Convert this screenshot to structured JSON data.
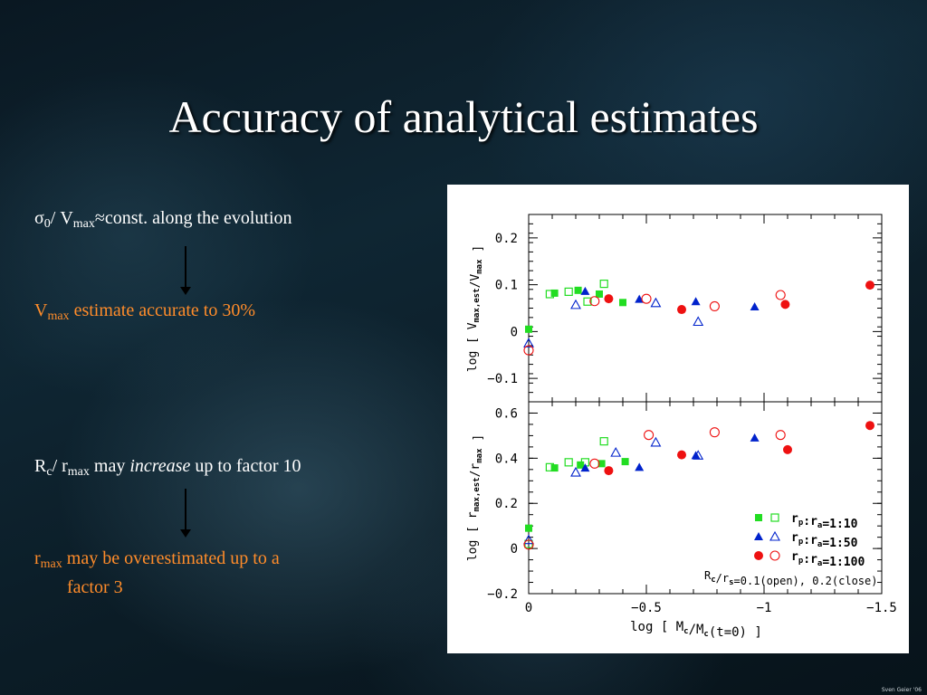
{
  "slide": {
    "title": "Accuracy of analytical estimates",
    "line1_main": "σ",
    "line1_sub1": "0",
    "line1_slash": "/ V",
    "line1_sub2": "max",
    "line1_rest": "≈const.  along the evolution",
    "line2_main": "V",
    "line2_sub": "max",
    "line2_rest": " estimate accurate to 30%",
    "line3_main": "R",
    "line3_sub1": "c",
    "line3_slash": "/ r",
    "line3_sub2": "max",
    "line3_may": " may ",
    "line3_italic": "increase",
    "line3_rest": " up to factor 10",
    "line4_main": "r",
    "line4_sub": "max",
    "line4_rest": " may be overestimated up to a",
    "line4_cont": "factor 3",
    "credit": "Sven Geier '06"
  },
  "chart_data": [
    {
      "type": "scatter",
      "panel": "top",
      "ylabel": "log [ V_max,est/V_max ]",
      "xlim": [
        0,
        -1.5
      ],
      "ylim": [
        -0.15,
        0.25
      ],
      "yticks": [
        0.2,
        0.1,
        0,
        -0.1
      ],
      "ytick_labels": [
        "0.2",
        "0.1",
        "0",
        "−0.1"
      ],
      "series": [
        {
          "marker": "square-filled",
          "color": "#22dd22",
          "points": [
            [
              0,
              0.005
            ],
            [
              -0.11,
              0.082
            ],
            [
              -0.21,
              0.088
            ],
            [
              -0.3,
              0.08
            ],
            [
              -0.4,
              0.062
            ]
          ]
        },
        {
          "marker": "square-open",
          "color": "#22dd22",
          "points": [
            [
              -0.09,
              0.08
            ],
            [
              -0.17,
              0.085
            ],
            [
              -0.25,
              0.064
            ],
            [
              -0.32,
              0.102
            ]
          ]
        },
        {
          "marker": "triangle-filled",
          "color": "#0022cc",
          "points": [
            [
              -0.24,
              0.086
            ],
            [
              -0.47,
              0.069
            ],
            [
              -0.71,
              0.064
            ],
            [
              -0.96,
              0.053
            ]
          ]
        },
        {
          "marker": "triangle-open",
          "color": "#0022cc",
          "points": [
            [
              0,
              -0.025
            ],
            [
              -0.2,
              0.057
            ],
            [
              -0.54,
              0.061
            ],
            [
              -0.72,
              0.021
            ]
          ]
        },
        {
          "marker": "circle-filled",
          "color": "#ee1111",
          "points": [
            [
              -0.34,
              0.07
            ],
            [
              -0.65,
              0.047
            ],
            [
              -1.09,
              0.058
            ],
            [
              -1.45,
              0.099
            ]
          ]
        },
        {
          "marker": "circle-open",
          "color": "#ee1111",
          "points": [
            [
              0,
              -0.04
            ],
            [
              -0.28,
              0.065
            ],
            [
              -0.5,
              0.07
            ],
            [
              -0.79,
              0.054
            ],
            [
              -1.07,
              0.078
            ]
          ]
        }
      ]
    },
    {
      "type": "scatter",
      "panel": "bottom",
      "xlabel": "log [ M_c/M_c(t=0) ]",
      "ylabel": "log [ r_max,est/r_max ]",
      "xlim": [
        0,
        -1.5
      ],
      "ylim": [
        -0.2,
        0.65
      ],
      "xticks": [
        0,
        -0.5,
        -1,
        -1.5
      ],
      "xtick_labels": [
        "0",
        "−0.5",
        "−1",
        "−1.5"
      ],
      "yticks": [
        0.6,
        0.4,
        0.2,
        0,
        -0.2
      ],
      "ytick_labels": [
        "0.6",
        "0.4",
        "0.2",
        "0",
        "−0.2"
      ],
      "series": [
        {
          "marker": "square-filled",
          "color": "#22dd22",
          "points": [
            [
              0,
              0.09
            ],
            [
              -0.11,
              0.357
            ],
            [
              -0.22,
              0.37
            ],
            [
              -0.31,
              0.376
            ],
            [
              -0.41,
              0.385
            ]
          ]
        },
        {
          "marker": "square-open",
          "color": "#22dd22",
          "points": [
            [
              0,
              0.02
            ],
            [
              -0.09,
              0.36
            ],
            [
              -0.17,
              0.382
            ],
            [
              -0.24,
              0.382
            ],
            [
              -0.32,
              0.475
            ]
          ]
        },
        {
          "marker": "triangle-filled",
          "color": "#0022cc",
          "points": [
            [
              -0.24,
              0.357
            ],
            [
              -0.47,
              0.36
            ],
            [
              -0.71,
              0.412
            ],
            [
              -0.96,
              0.49
            ]
          ]
        },
        {
          "marker": "triangle-open",
          "color": "#0022cc",
          "points": [
            [
              0,
              0.038
            ],
            [
              -0.2,
              0.337
            ],
            [
              -0.37,
              0.425
            ],
            [
              -0.54,
              0.47
            ],
            [
              -0.72,
              0.412
            ]
          ]
        },
        {
          "marker": "circle-filled",
          "color": "#ee1111",
          "points": [
            [
              -0.34,
              0.345
            ],
            [
              -0.65,
              0.415
            ],
            [
              -1.1,
              0.438
            ],
            [
              -1.45,
              0.545
            ]
          ]
        },
        {
          "marker": "circle-open",
          "color": "#ee1111",
          "points": [
            [
              0,
              0.017
            ],
            [
              -0.28,
              0.376
            ],
            [
              -0.51,
              0.503
            ],
            [
              -0.79,
              0.515
            ],
            [
              -1.07,
              0.503
            ]
          ]
        }
      ],
      "legend": {
        "placement": "bottom-right",
        "entries": [
          "r_p:r_a=1:10",
          "r_p:r_a=1:50",
          "r_p:r_a=1:100"
        ],
        "colors": [
          "#22dd22",
          "#0022cc",
          "#ee1111"
        ],
        "footnote": "R_c/r_s=0.1(open), 0.2(close)"
      }
    }
  ]
}
